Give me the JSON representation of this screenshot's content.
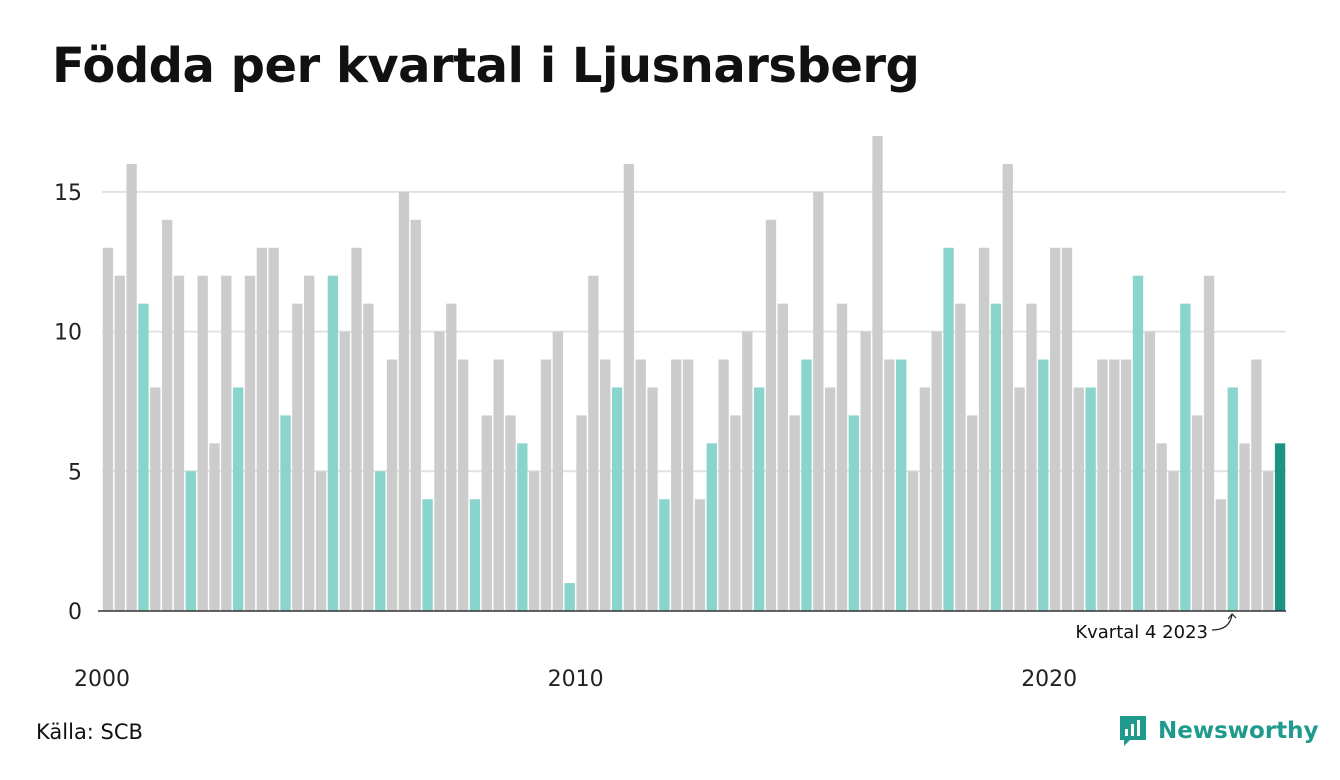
{
  "title": "Födda per kvartal i Ljusnarsberg",
  "source": "Källa: SCB",
  "brand": {
    "name": "Newsworthy",
    "icon": "newsworthy-logo-icon"
  },
  "colors": {
    "bar_default": "#cccccc",
    "bar_q4": "#89d4cb",
    "bar_latest": "#1b9486",
    "grid": "#e2e2e2",
    "axis": "#333333",
    "brand": "#1f9b8e"
  },
  "chart_data": {
    "type": "bar",
    "title": "Födda per kvartal i Ljusnarsberg",
    "xlabel": "",
    "ylabel": "",
    "ylim": [
      0,
      17
    ],
    "y_ticks": [
      0,
      5,
      10,
      15
    ],
    "x_tick_labels": [
      "2000",
      "2010",
      "2020"
    ],
    "start_year": 2000,
    "grid": true,
    "annotation": {
      "text": "Kvartal 4 2023"
    },
    "series": [
      {
        "values": [
          13,
          12,
          16,
          11,
          8,
          14,
          12,
          5,
          12,
          6,
          12,
          8,
          12,
          13,
          13,
          7,
          11,
          12,
          5,
          12,
          10,
          13,
          11,
          5,
          9,
          15,
          14,
          4,
          10,
          11,
          9,
          4,
          7,
          9,
          7,
          6,
          5,
          9,
          10,
          1,
          7,
          12,
          9,
          8,
          16,
          9,
          8,
          4,
          9,
          9,
          4,
          6,
          9,
          7,
          10,
          8,
          14,
          11,
          7,
          9,
          15,
          8,
          11,
          7,
          10,
          17,
          9,
          9,
          5,
          8,
          10,
          13,
          11,
          7,
          13,
          11,
          16,
          8,
          11,
          9,
          13,
          13,
          8,
          8,
          9,
          9,
          9,
          12,
          10,
          6,
          5,
          11,
          7,
          12,
          4,
          8,
          6,
          9,
          5,
          6
        ]
      }
    ]
  }
}
